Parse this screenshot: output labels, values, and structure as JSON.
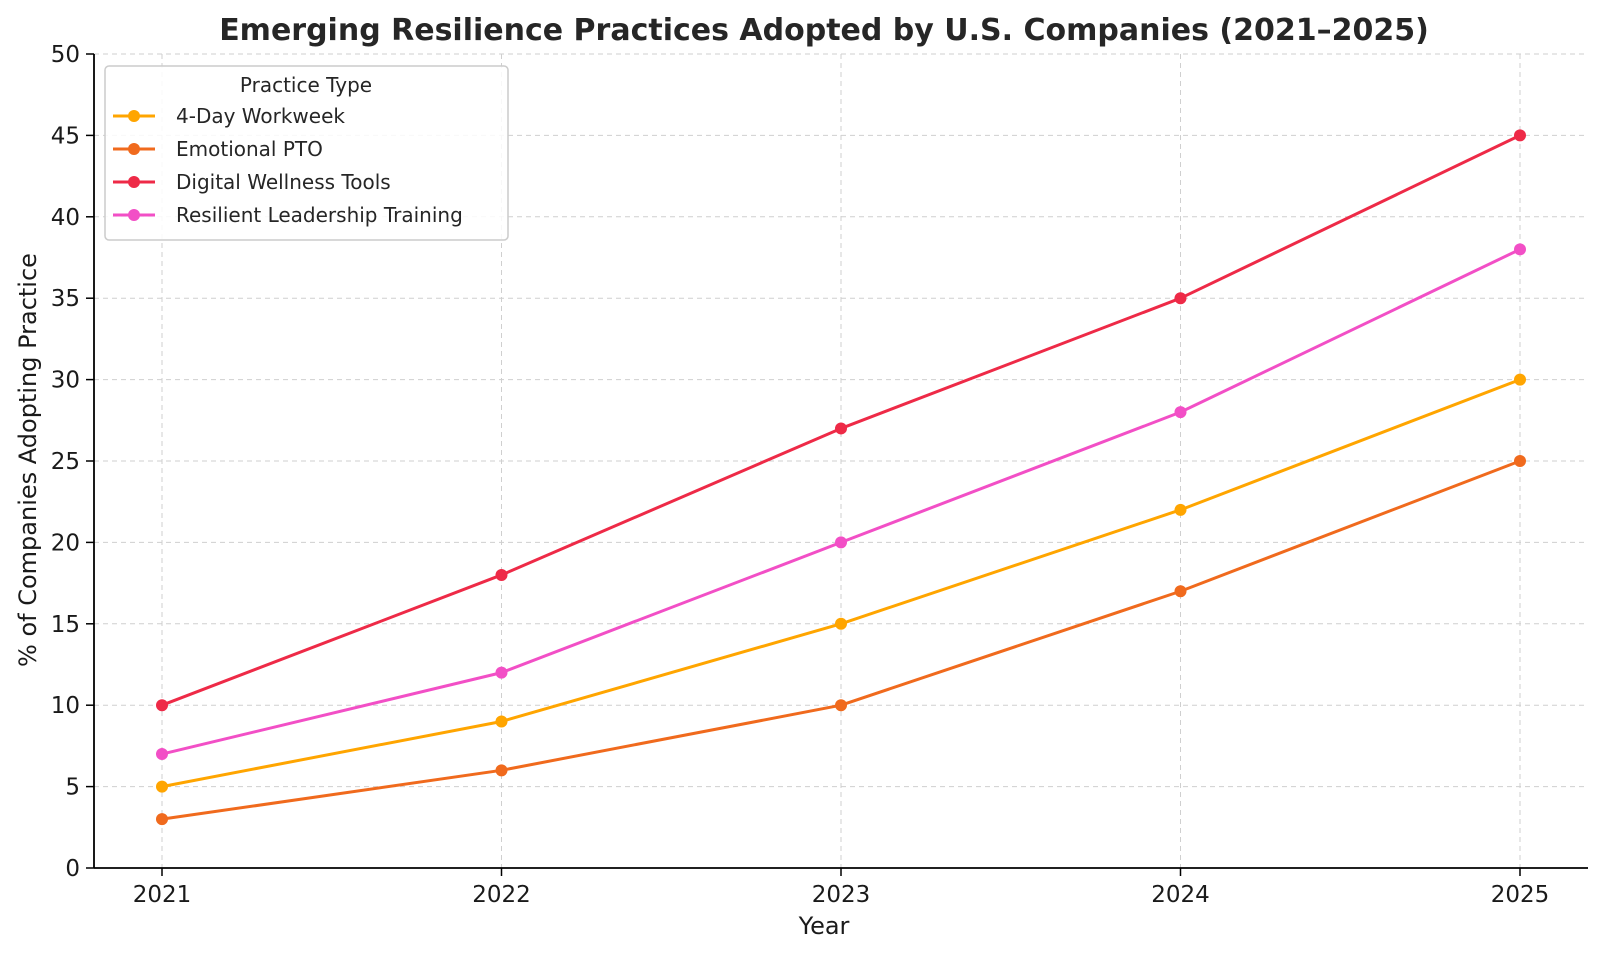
{
  "chart_data": {
    "type": "line",
    "title": "Emerging Resilience Practices Adopted by U.S. Companies (2021–2025)",
    "xlabel": "Year",
    "ylabel": "% of Companies Adopting Practice",
    "x": [
      2021,
      2022,
      2023,
      2024,
      2025
    ],
    "x_tick_labels": [
      "2021",
      "2022",
      "2023",
      "2024",
      "2025"
    ],
    "ylim": [
      0,
      50
    ],
    "y_ticks": [
      0,
      5,
      10,
      15,
      20,
      25,
      30,
      35,
      40,
      45,
      50
    ],
    "y_tick_labels": [
      "0",
      "5",
      "10",
      "15",
      "20",
      "25",
      "30",
      "35",
      "40",
      "45",
      "50"
    ],
    "grid": true,
    "legend_title": "Practice Type",
    "legend_position": "top-left",
    "series": [
      {
        "name": "4-Day Workweek",
        "color": "#FFA500",
        "values": [
          5,
          9,
          15,
          22,
          30
        ]
      },
      {
        "name": "Emotional PTO",
        "color": "#F06A1D",
        "values": [
          3,
          6,
          10,
          17,
          25
        ]
      },
      {
        "name": "Digital Wellness Tools",
        "color": "#EE2A47",
        "values": [
          10,
          18,
          27,
          35,
          45
        ]
      },
      {
        "name": "Resilient Leadership Training",
        "color": "#F24FC6",
        "values": [
          7,
          12,
          20,
          28,
          38
        ]
      }
    ]
  }
}
